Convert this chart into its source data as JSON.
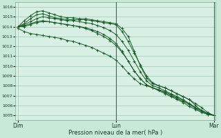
{
  "title": "",
  "xlabel": "Pression niveau de la mer( hPa )",
  "background_color": "#c8e8d8",
  "plot_bg_color": "#d8f0e4",
  "grid_color": "#a0c8b0",
  "line_color": "#1a5c2a",
  "ylim": [
    1004.5,
    1016.5
  ],
  "yticks": [
    1005,
    1006,
    1007,
    1008,
    1009,
    1010,
    1011,
    1012,
    1013,
    1014,
    1015,
    1016
  ],
  "xtick_labels": [
    "Dim",
    "Lun",
    "Mar"
  ],
  "xtick_positions": [
    0,
    16,
    32
  ],
  "num_points": 33,
  "series": [
    [
      1014.0,
      1014.3,
      1014.8,
      1015.2,
      1015.3,
      1015.1,
      1014.9,
      1014.8,
      1014.7,
      1014.7,
      1014.7,
      1014.7,
      1014.6,
      1014.5,
      1014.4,
      1014.3,
      1014.2,
      1013.5,
      1012.5,
      1011.3,
      1010.1,
      1009.0,
      1008.3,
      1008.0,
      1007.8,
      1007.5,
      1007.2,
      1006.9,
      1006.6,
      1006.2,
      1005.8,
      1005.3,
      1005.0
    ],
    [
      1014.0,
      1014.6,
      1015.1,
      1015.5,
      1015.6,
      1015.4,
      1015.2,
      1015.0,
      1014.9,
      1014.9,
      1014.8,
      1014.8,
      1014.7,
      1014.6,
      1014.5,
      1014.4,
      1014.3,
      1013.8,
      1013.0,
      1011.5,
      1010.0,
      1008.8,
      1008.2,
      1008.0,
      1007.8,
      1007.5,
      1007.2,
      1006.9,
      1006.6,
      1006.0,
      1005.5,
      1005.2,
      1005.0
    ],
    [
      1014.0,
      1014.0,
      1014.2,
      1014.4,
      1014.5,
      1014.5,
      1014.4,
      1014.3,
      1014.2,
      1014.1,
      1014.0,
      1013.9,
      1013.7,
      1013.5,
      1013.2,
      1012.8,
      1012.3,
      1011.5,
      1010.5,
      1009.5,
      1008.7,
      1008.1,
      1007.8,
      1007.6,
      1007.4,
      1007.1,
      1006.8,
      1006.5,
      1006.2,
      1005.8,
      1005.5,
      1005.2,
      1005.0
    ],
    [
      1013.8,
      1013.5,
      1013.3,
      1013.2,
      1013.1,
      1013.0,
      1012.9,
      1012.8,
      1012.6,
      1012.5,
      1012.3,
      1012.1,
      1011.9,
      1011.6,
      1011.3,
      1011.0,
      1010.6,
      1010.0,
      1009.3,
      1008.7,
      1008.2,
      1008.0,
      1007.8,
      1007.5,
      1007.2,
      1006.9,
      1006.6,
      1006.3,
      1005.9,
      1005.6,
      1005.3,
      1005.1,
      1005.0
    ],
    [
      1014.0,
      1014.1,
      1014.3,
      1014.5,
      1014.6,
      1014.5,
      1014.4,
      1014.3,
      1014.2,
      1014.1,
      1014.0,
      1013.8,
      1013.6,
      1013.3,
      1013.0,
      1012.6,
      1012.1,
      1011.4,
      1010.5,
      1009.5,
      1008.7,
      1008.1,
      1007.8,
      1007.6,
      1007.3,
      1007.0,
      1006.7,
      1006.4,
      1006.1,
      1005.7,
      1005.4,
      1005.1,
      1005.0
    ],
    [
      1014.0,
      1014.2,
      1014.5,
      1014.8,
      1015.0,
      1014.9,
      1014.8,
      1014.7,
      1014.6,
      1014.6,
      1014.5,
      1014.4,
      1014.3,
      1014.1,
      1013.9,
      1013.6,
      1013.2,
      1012.5,
      1011.6,
      1010.5,
      1009.4,
      1008.5,
      1008.0,
      1007.8,
      1007.5,
      1007.2,
      1006.9,
      1006.6,
      1006.2,
      1005.8,
      1005.5,
      1005.2,
      1005.0
    ]
  ]
}
